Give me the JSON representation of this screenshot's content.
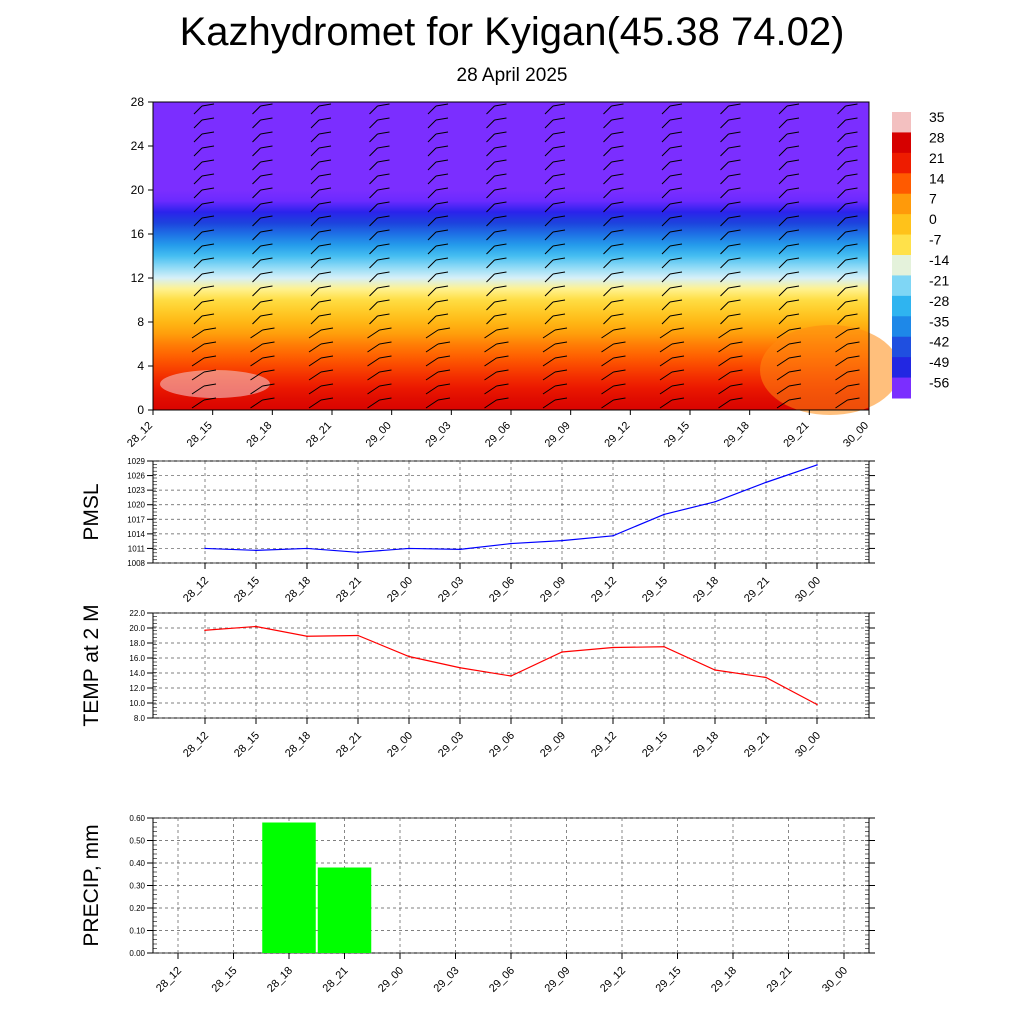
{
  "header": {
    "title": "Kazhydromet for Kyigan(45.38 74.02)",
    "subtitle": "28 April 2025"
  },
  "time_labels": [
    "28_12",
    "28_15",
    "28_18",
    "28_21",
    "29_00",
    "29_03",
    "29_06",
    "29_09",
    "29_12",
    "29_15",
    "29_18",
    "29_21",
    "30_00"
  ],
  "chart_data": [
    {
      "type": "heatmap",
      "title": "",
      "x": [
        "28_12",
        "28_15",
        "28_18",
        "28_21",
        "29_00",
        "29_03",
        "29_06",
        "29_09",
        "29_12",
        "29_15",
        "29_18",
        "29_21",
        "30_00"
      ],
      "y_ticks": [
        0,
        4,
        8,
        12,
        16,
        20,
        24,
        28
      ],
      "ylim": [
        0,
        28
      ],
      "levels_km": [
        0,
        1,
        2,
        3,
        4,
        5,
        6,
        7,
        8,
        9,
        10,
        11,
        12,
        13,
        14,
        15,
        16,
        17,
        18,
        19,
        20,
        21,
        22,
        23,
        24,
        25,
        26,
        27,
        28
      ],
      "temperature_profile": [
        27,
        25,
        22,
        19,
        16,
        13,
        10,
        6,
        2,
        -2,
        -6,
        -11,
        -15,
        -20,
        -26,
        -32,
        -38,
        -44,
        -50,
        -55,
        -58,
        -58,
        -58,
        -58,
        -58,
        -58,
        -58,
        -58,
        -58
      ],
      "colorbar": {
        "labels": [
          "35",
          "28",
          "21",
          "14",
          "7",
          "0",
          "-7",
          "-14",
          "-21",
          "-28",
          "-35",
          "-42",
          "-49",
          "-56"
        ],
        "values": [
          35,
          28,
          21,
          14,
          7,
          0,
          -7,
          -14,
          -21,
          -28,
          -35,
          -42,
          -49,
          -56
        ]
      },
      "overlay": "wind barbs"
    },
    {
      "type": "line",
      "ylabel": "PMSL",
      "x": [
        "28_12",
        "28_15",
        "28_18",
        "28_21",
        "29_00",
        "29_03",
        "29_06",
        "29_09",
        "29_12",
        "29_15",
        "29_18",
        "29_21",
        "30_00"
      ],
      "values": [
        1011.0,
        1010.6,
        1011.0,
        1010.2,
        1011.0,
        1010.8,
        1012.0,
        1012.6,
        1013.6,
        1018.0,
        1020.6,
        1024.6,
        1028.2
      ],
      "ylim": [
        1008,
        1029
      ],
      "y_ticks": [
        "1008",
        "1011",
        "1014",
        "1017",
        "1020",
        "1023",
        "1026",
        "1029"
      ],
      "color": "#0000ff",
      "grid": true
    },
    {
      "type": "line",
      "ylabel": "TEMP at 2 M",
      "x": [
        "28_12",
        "28_15",
        "28_18",
        "28_21",
        "29_00",
        "29_03",
        "29_06",
        "29_09",
        "29_12",
        "29_15",
        "29_18",
        "29_21",
        "30_00"
      ],
      "values": [
        19.7,
        20.2,
        18.9,
        19.0,
        16.2,
        14.7,
        13.6,
        16.8,
        17.4,
        17.5,
        14.4,
        13.4,
        9.8
      ],
      "ylim": [
        8.0,
        22.0
      ],
      "y_ticks": [
        "8.0",
        "10.0",
        "12.0",
        "14.0",
        "16.0",
        "18.0",
        "20.0",
        "22.0"
      ],
      "color": "#ff0000",
      "grid": true
    },
    {
      "type": "bar",
      "ylabel": "PRECIP, mm",
      "categories": [
        "28_12",
        "28_15",
        "28_18",
        "28_21",
        "29_00",
        "29_03",
        "29_06",
        "29_09",
        "29_12",
        "29_15",
        "29_18",
        "29_21",
        "30_00"
      ],
      "values": [
        0,
        0,
        0.58,
        0.38,
        0,
        0,
        0,
        0,
        0,
        0,
        0,
        0,
        0
      ],
      "ylim": [
        0.0,
        0.6
      ],
      "y_ticks": [
        "0.00",
        "0.10",
        "0.20",
        "0.30",
        "0.40",
        "0.50",
        "0.60"
      ],
      "color": "#00ff00",
      "grid": true
    }
  ]
}
